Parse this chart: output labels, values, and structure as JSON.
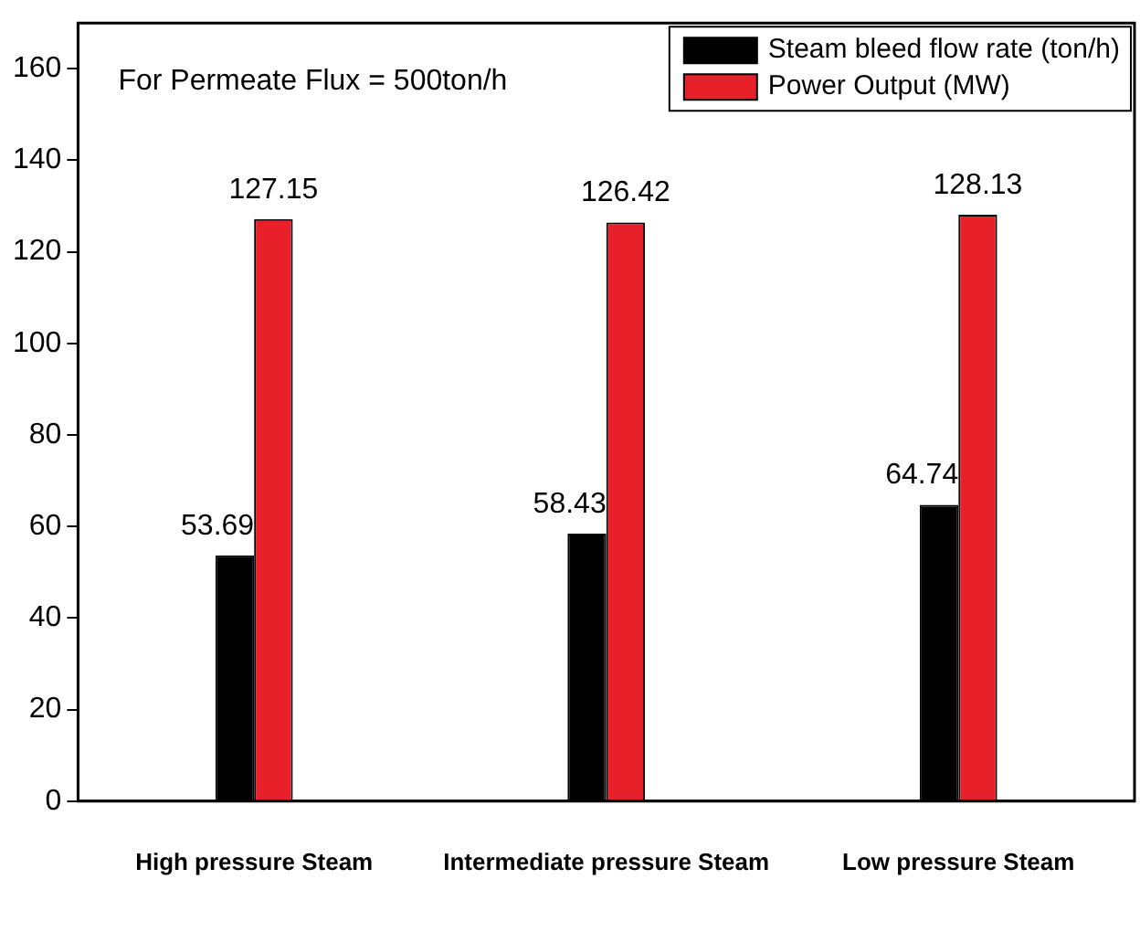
{
  "chart_data": {
    "type": "bar",
    "categories": [
      "High pressure Steam",
      "Intermediate pressure Steam",
      "Low pressure Steam"
    ],
    "series": [
      {
        "name": "Steam bleed flow rate (ton/h)",
        "color": "#000000",
        "values": [
          53.69,
          58.43,
          64.74
        ]
      },
      {
        "name": "Power Output (MW)",
        "color": "#e8202a",
        "values": [
          127.15,
          126.42,
          128.13
        ]
      }
    ],
    "ylim": [
      0,
      170
    ],
    "yticks": [
      0,
      20,
      40,
      60,
      80,
      100,
      120,
      140,
      160
    ],
    "grid": false,
    "legend": "top right",
    "data_labels": true,
    "annotations": [
      "For Permeate Flux = 500ton/h"
    ]
  }
}
